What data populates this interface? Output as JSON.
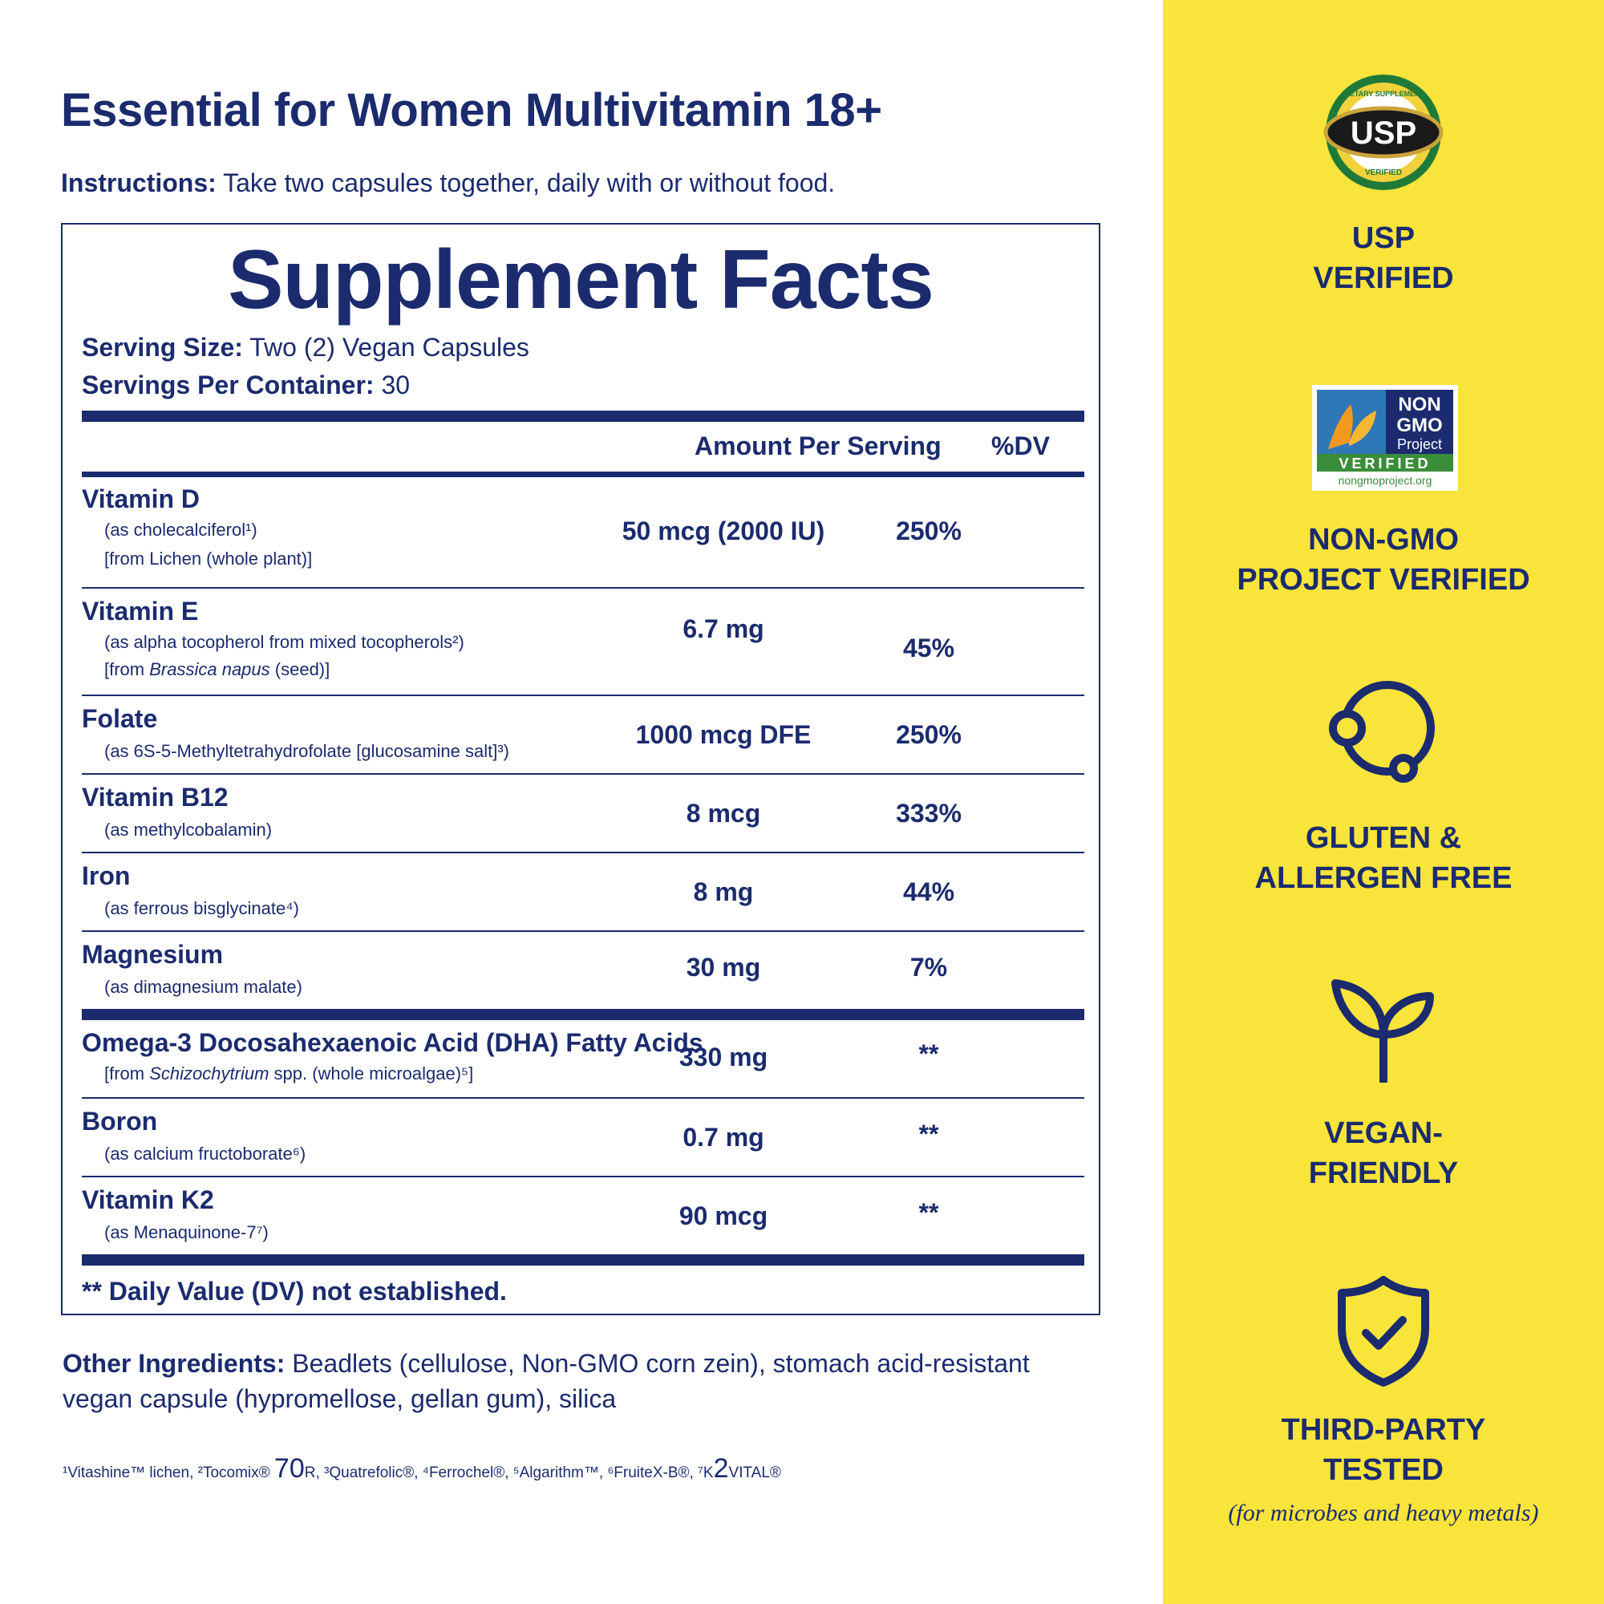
{
  "header": {
    "title": "Essential for Women Multivitamin 18+",
    "instructions_label": "Instructions:",
    "instructions_text": " Take two capsules together, daily with or without food."
  },
  "facts": {
    "title": "Supplement Facts",
    "serving_size_label": "Serving Size:",
    "serving_size_value": " Two (2) Vegan Capsules",
    "servings_label": "Servings Per Container:",
    "servings_value": " 30",
    "col_amount": "Amount Per Serving",
    "col_dv": "%DV",
    "rows": [
      {
        "name": "Vitamin D",
        "sub1": "(as cholecalciferol¹)",
        "sub2": "[from Lichen (whole plant)]",
        "amount": "50 mcg (2000 IU)",
        "dv": "250%"
      },
      {
        "name": "Vitamin E",
        "sub1": "(as alpha tocopherol from mixed tocopherols²)",
        "sub2_pre": "[from ",
        "sub2_it": "Brassica napus",
        "sub2_post": " (seed)]",
        "amount": "6.7 mg",
        "dv": "45%"
      },
      {
        "name": "Folate",
        "sub1": "(as 6S-5-Methyltetrahydrofolate [glucosamine salt]³)",
        "amount": "1000 mcg DFE",
        "dv": "250%"
      },
      {
        "name": "Vitamin B12",
        "sub1": "(as methylcobalamin)",
        "amount": "8 mcg",
        "dv": "333%"
      },
      {
        "name": "Iron",
        "sub1": "(as ferrous bisglycinate⁴)",
        "amount": "8 mg",
        "dv": "44%"
      },
      {
        "name": "Magnesium",
        "sub1": "(as dimagnesium malate)",
        "amount": "30 mg",
        "dv": "7%"
      },
      {
        "name": "Omega-3 Docosahexaenoic Acid (DHA) Fatty Acids",
        "sub1_pre": "[from ",
        "sub1_it": "Schizochytrium",
        "sub1_post": " spp. (whole microalgae)⁵]",
        "amount": "330 mg",
        "dv": "**"
      },
      {
        "name": "Boron",
        "sub1": "(as calcium fructoborate⁶)",
        "amount": "0.7 mg",
        "dv": "**"
      },
      {
        "name": "Vitamin K2",
        "sub1": "(as Menaquinone-7⁷)",
        "amount": "90 mcg",
        "dv": "**"
      }
    ],
    "footnote": "** Daily Value (DV) not established."
  },
  "other": {
    "label": "Other Ingredients:",
    "text": " Beadlets (cellulose, Non-GMO corn zein), stomach acid-resistant vegan capsule (hypromellose, gellan gum), silica"
  },
  "trademarks": {
    "part1": "¹Vitashine™ lichen, ²Tocomix® ",
    "big1": "70",
    "part2": "R, ³Quatrefolic®, ⁴Ferrochel®, ⁵Algarithm™, ⁶FruiteX-B®, ⁷K",
    "big2": "2",
    "part3": "VITAL®"
  },
  "badges": {
    "usp": {
      "logo_top": "DIETARY SUPPLEMENT",
      "logo_mid": "USP",
      "logo_bot": "VERIFIED",
      "line1": "USP",
      "line2": "VERIFIED"
    },
    "nongmo": {
      "logo_l1": "NON",
      "logo_l2": "GMO",
      "logo_l3": "Project",
      "logo_l4": "VERIFIED",
      "logo_url": "nongmoproject.org",
      "line1": "NON-GMO",
      "line2": "PROJECT VERIFIED"
    },
    "gluten": {
      "line1": "GLUTEN &",
      "line2": "ALLERGEN FREE"
    },
    "vegan": {
      "line1": "VEGAN-",
      "line2": "FRIENDLY"
    },
    "tested": {
      "line1": "THIRD-PARTY",
      "line2": "TESTED",
      "sub": "(for microbes and heavy metals)"
    }
  },
  "colors": {
    "navy": "#1b2b6e",
    "yellow": "#f8e43a"
  }
}
